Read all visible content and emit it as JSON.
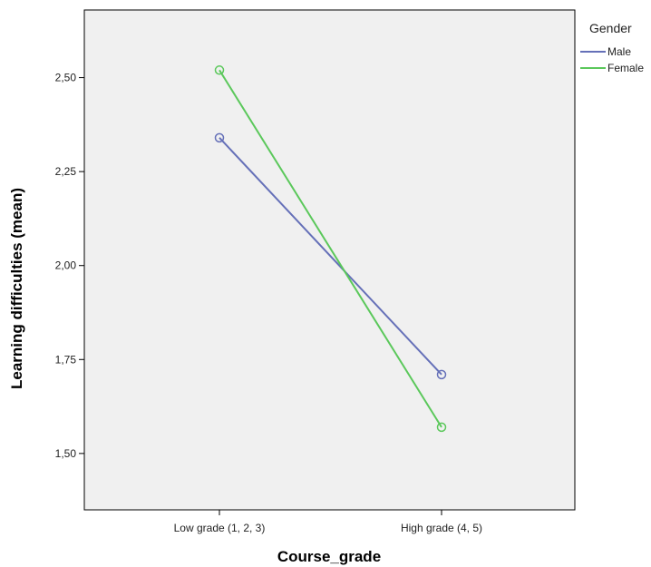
{
  "chart_data": {
    "type": "line",
    "xlabel": "Course_grade",
    "ylabel": "Learning difficulties (mean)",
    "categories": [
      "Low grade (1, 2, 3)",
      "High grade (4, 5)"
    ],
    "ylim": [
      1.35,
      2.68
    ],
    "yticks": [
      "1,50",
      "1,75",
      "2,00",
      "2,25",
      "2,50"
    ],
    "ytick_values": [
      1.5,
      1.75,
      2.0,
      2.25,
      2.5
    ],
    "grid": false,
    "legend": {
      "title": "Gender",
      "placement": "right"
    },
    "series": [
      {
        "name": "Male",
        "color": "#6570b8",
        "values": [
          2.34,
          1.71
        ]
      },
      {
        "name": "Female",
        "color": "#5bc85b",
        "values": [
          2.52,
          1.57
        ]
      }
    ]
  }
}
